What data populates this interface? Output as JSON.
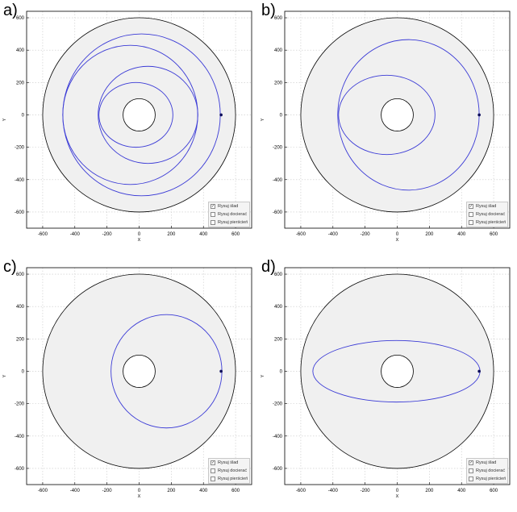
{
  "panels": [
    {
      "label": "a)"
    },
    {
      "label": "b)"
    },
    {
      "label": "c)"
    },
    {
      "label": "d)"
    }
  ],
  "legend": {
    "items": [
      {
        "label": "Rysuj ślad",
        "checked": true
      },
      {
        "label": "Rysuj docierać",
        "checked": false
      },
      {
        "label": "Rysuj pierścień",
        "checked": false
      }
    ]
  },
  "colors": {
    "trajectory": "#3b3bd6",
    "disk": "#f0f0f0",
    "grid": "#c8c8c8",
    "marker": "#0b0b5a"
  },
  "chart_data": [
    {
      "type": "line",
      "panel": "a)",
      "xlabel": "X",
      "ylabel": "Y",
      "xlim": [
        -700,
        700
      ],
      "ylim": [
        -700,
        640
      ],
      "xticks": [
        -600,
        -400,
        -200,
        0,
        200,
        400,
        600
      ],
      "yticks": [
        -600,
        -400,
        -200,
        0,
        200,
        400,
        600
      ],
      "grid": true,
      "outer_circle_radius": 600,
      "inner_circle_radius": 100,
      "start_point": [
        510,
        0
      ],
      "series": [
        {
          "shape": "ellipse",
          "center": [
            15,
            0
          ],
          "rx": 490,
          "ry": 500
        },
        {
          "shape": "ellipse",
          "center": [
            -55,
            0
          ],
          "rx": 420,
          "ry": 430
        },
        {
          "shape": "ellipse",
          "center": [
            55,
            0
          ],
          "rx": 310,
          "ry": 300
        },
        {
          "shape": "ellipse",
          "center": [
            -20,
            0
          ],
          "rx": 230,
          "ry": 200
        }
      ]
    },
    {
      "type": "line",
      "panel": "b)",
      "xlabel": "X",
      "ylabel": "Y",
      "xlim": [
        -700,
        700
      ],
      "ylim": [
        -700,
        640
      ],
      "xticks": [
        -600,
        -400,
        -200,
        0,
        200,
        400,
        600
      ],
      "yticks": [
        -600,
        -400,
        -200,
        0,
        200,
        400,
        600
      ],
      "grid": true,
      "outer_circle_radius": 600,
      "inner_circle_radius": 100,
      "start_point": [
        510,
        0
      ],
      "series": [
        {
          "shape": "ellipse",
          "center": [
            70,
            0
          ],
          "rx": 440,
          "ry": 465
        },
        {
          "shape": "ellipse",
          "center": [
            -65,
            0
          ],
          "rx": 300,
          "ry": 245
        }
      ]
    },
    {
      "type": "line",
      "panel": "c)",
      "xlabel": "X",
      "ylabel": "Y",
      "xlim": [
        -700,
        700
      ],
      "ylim": [
        -700,
        640
      ],
      "xticks": [
        -600,
        -400,
        -200,
        0,
        200,
        400,
        600
      ],
      "yticks": [
        -600,
        -400,
        -200,
        0,
        200,
        400,
        600
      ],
      "grid": true,
      "outer_circle_radius": 600,
      "inner_circle_radius": 100,
      "start_point": [
        510,
        0
      ],
      "series": [
        {
          "shape": "ellipse",
          "center": [
            170,
            0
          ],
          "rx": 345,
          "ry": 350
        }
      ]
    },
    {
      "type": "line",
      "panel": "d)",
      "xlabel": "X",
      "ylabel": "Y",
      "xlim": [
        -700,
        700
      ],
      "ylim": [
        -700,
        640
      ],
      "xticks": [
        -600,
        -400,
        -200,
        0,
        200,
        400,
        600
      ],
      "yticks": [
        -600,
        -400,
        -200,
        0,
        200,
        400,
        600
      ],
      "grid": true,
      "outer_circle_radius": 600,
      "inner_circle_radius": 100,
      "start_point": [
        510,
        0
      ],
      "series": [
        {
          "shape": "ellipse",
          "center": [
            -5,
            0
          ],
          "rx": 520,
          "ry": 190
        }
      ]
    }
  ]
}
